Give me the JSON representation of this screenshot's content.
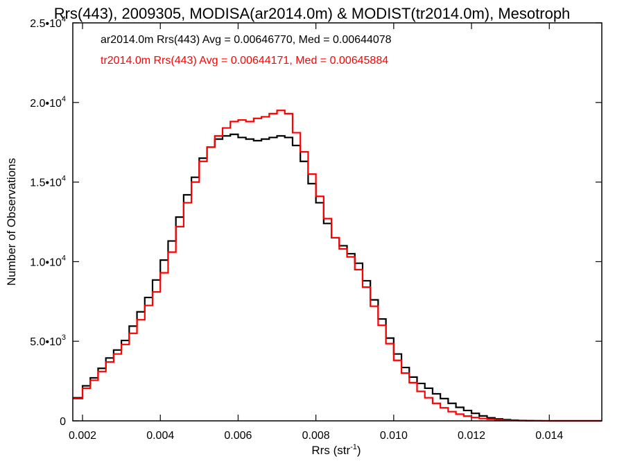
{
  "chart_data": {
    "type": "line",
    "step": true,
    "title": "Rrs(443), 2009305, MODISA(ar2014.0m) & MODIST(tr2014.0m), Mesotroph",
    "xlabel_base": "Rrs (str",
    "xlabel_exp": "-1",
    "xlabel_end": ")",
    "ylabel": "Number of Observations",
    "xlim": [
      0.00175,
      0.01535
    ],
    "ylim": [
      0,
      25000
    ],
    "grid": false,
    "legend_position": "top-left",
    "x_ticks": [
      {
        "value": 0.002,
        "label": "0.002"
      },
      {
        "value": 0.004,
        "label": "0.004"
      },
      {
        "value": 0.006,
        "label": "0.006"
      },
      {
        "value": 0.008,
        "label": "0.008"
      },
      {
        "value": 0.01,
        "label": "0.010"
      },
      {
        "value": 0.012,
        "label": "0.012"
      },
      {
        "value": 0.014,
        "label": "0.014"
      }
    ],
    "y_ticks": [
      {
        "value": 0,
        "mant": "0",
        "exp": ""
      },
      {
        "value": 5000,
        "mant": "5.0•10",
        "exp": "3"
      },
      {
        "value": 10000,
        "mant": "1.0•10",
        "exp": "4"
      },
      {
        "value": 15000,
        "mant": "1.5•10",
        "exp": "4"
      },
      {
        "value": 20000,
        "mant": "2.0•10",
        "exp": "4"
      },
      {
        "value": 25000,
        "mant": "2.5•10",
        "exp": "4"
      }
    ],
    "series": [
      {
        "name": "ar2014.0m Rrs(443) Avg = 0.00646770, Med = 0.00644078",
        "color": "#000000",
        "points": [
          [
            0.00175,
            1450
          ],
          [
            0.002,
            2200
          ],
          [
            0.0022,
            2700
          ],
          [
            0.0024,
            3300
          ],
          [
            0.0026,
            3950
          ],
          [
            0.0028,
            4450
          ],
          [
            0.003,
            5050
          ],
          [
            0.0032,
            5950
          ],
          [
            0.0034,
            6850
          ],
          [
            0.0036,
            7750
          ],
          [
            0.0038,
            8850
          ],
          [
            0.004,
            10100
          ],
          [
            0.0042,
            11300
          ],
          [
            0.0044,
            12800
          ],
          [
            0.0046,
            14200
          ],
          [
            0.0048,
            15300
          ],
          [
            0.005,
            16500
          ],
          [
            0.0052,
            17200
          ],
          [
            0.0054,
            17700
          ],
          [
            0.0056,
            17900
          ],
          [
            0.0058,
            18000
          ],
          [
            0.006,
            17800
          ],
          [
            0.0062,
            17700
          ],
          [
            0.0064,
            17600
          ],
          [
            0.0066,
            17700
          ],
          [
            0.0068,
            17800
          ],
          [
            0.007,
            17900
          ],
          [
            0.0072,
            17800
          ],
          [
            0.0074,
            17300
          ],
          [
            0.0076,
            16300
          ],
          [
            0.0078,
            14900
          ],
          [
            0.008,
            13700
          ],
          [
            0.0082,
            12400
          ],
          [
            0.0084,
            11500
          ],
          [
            0.0086,
            11000
          ],
          [
            0.0088,
            10500
          ],
          [
            0.009,
            9900
          ],
          [
            0.0092,
            8800
          ],
          [
            0.0094,
            7600
          ],
          [
            0.0096,
            6400
          ],
          [
            0.0098,
            5200
          ],
          [
            0.01,
            4200
          ],
          [
            0.0102,
            3350
          ],
          [
            0.0104,
            2750
          ],
          [
            0.0106,
            2350
          ],
          [
            0.0108,
            2050
          ],
          [
            0.011,
            1700
          ],
          [
            0.0112,
            1400
          ],
          [
            0.0114,
            1100
          ],
          [
            0.0116,
            850
          ],
          [
            0.0118,
            650
          ],
          [
            0.012,
            470
          ],
          [
            0.0122,
            310
          ],
          [
            0.0124,
            190
          ],
          [
            0.0126,
            120
          ],
          [
            0.0128,
            75
          ],
          [
            0.013,
            45
          ],
          [
            0.0132,
            25
          ],
          [
            0.0134,
            12
          ],
          [
            0.0136,
            5
          ],
          [
            0.0138,
            2
          ],
          [
            0.014,
            0
          ],
          [
            0.01535,
            0
          ]
        ]
      },
      {
        "name": "tr2014.0m Rrs(443) Avg = 0.00644171, Med = 0.00645884",
        "color": "#ff0000",
        "points": [
          [
            0.00175,
            1400
          ],
          [
            0.002,
            2050
          ],
          [
            0.0022,
            2550
          ],
          [
            0.0024,
            3100
          ],
          [
            0.0026,
            3700
          ],
          [
            0.0028,
            4200
          ],
          [
            0.003,
            4800
          ],
          [
            0.0032,
            5500
          ],
          [
            0.0034,
            6350
          ],
          [
            0.0036,
            7250
          ],
          [
            0.0038,
            8100
          ],
          [
            0.004,
            9300
          ],
          [
            0.0042,
            10600
          ],
          [
            0.0044,
            12200
          ],
          [
            0.0046,
            13700
          ],
          [
            0.0048,
            15000
          ],
          [
            0.005,
            16300
          ],
          [
            0.0052,
            17200
          ],
          [
            0.0054,
            17900
          ],
          [
            0.0056,
            18400
          ],
          [
            0.0058,
            18800
          ],
          [
            0.006,
            18900
          ],
          [
            0.0062,
            18800
          ],
          [
            0.0064,
            19000
          ],
          [
            0.0066,
            19100
          ],
          [
            0.0068,
            19300
          ],
          [
            0.007,
            19500
          ],
          [
            0.0072,
            19300
          ],
          [
            0.0074,
            18100
          ],
          [
            0.0076,
            16900
          ],
          [
            0.0078,
            15500
          ],
          [
            0.008,
            14100
          ],
          [
            0.0082,
            12700
          ],
          [
            0.0084,
            11500
          ],
          [
            0.0086,
            10800
          ],
          [
            0.0088,
            10300
          ],
          [
            0.009,
            9500
          ],
          [
            0.0092,
            8400
          ],
          [
            0.0094,
            7200
          ],
          [
            0.0096,
            6000
          ],
          [
            0.0098,
            4850
          ],
          [
            0.01,
            3800
          ],
          [
            0.0102,
            3000
          ],
          [
            0.0104,
            2400
          ],
          [
            0.0106,
            1850
          ],
          [
            0.0108,
            1450
          ],
          [
            0.011,
            1100
          ],
          [
            0.0112,
            820
          ],
          [
            0.0114,
            580
          ],
          [
            0.0116,
            420
          ],
          [
            0.0118,
            300
          ],
          [
            0.012,
            210
          ],
          [
            0.0122,
            150
          ],
          [
            0.0124,
            100
          ],
          [
            0.0126,
            65
          ],
          [
            0.0128,
            40
          ],
          [
            0.013,
            25
          ],
          [
            0.0132,
            14
          ],
          [
            0.0134,
            7
          ],
          [
            0.0136,
            3
          ],
          [
            0.0138,
            1
          ],
          [
            0.014,
            0
          ],
          [
            0.01535,
            0
          ]
        ]
      }
    ]
  }
}
